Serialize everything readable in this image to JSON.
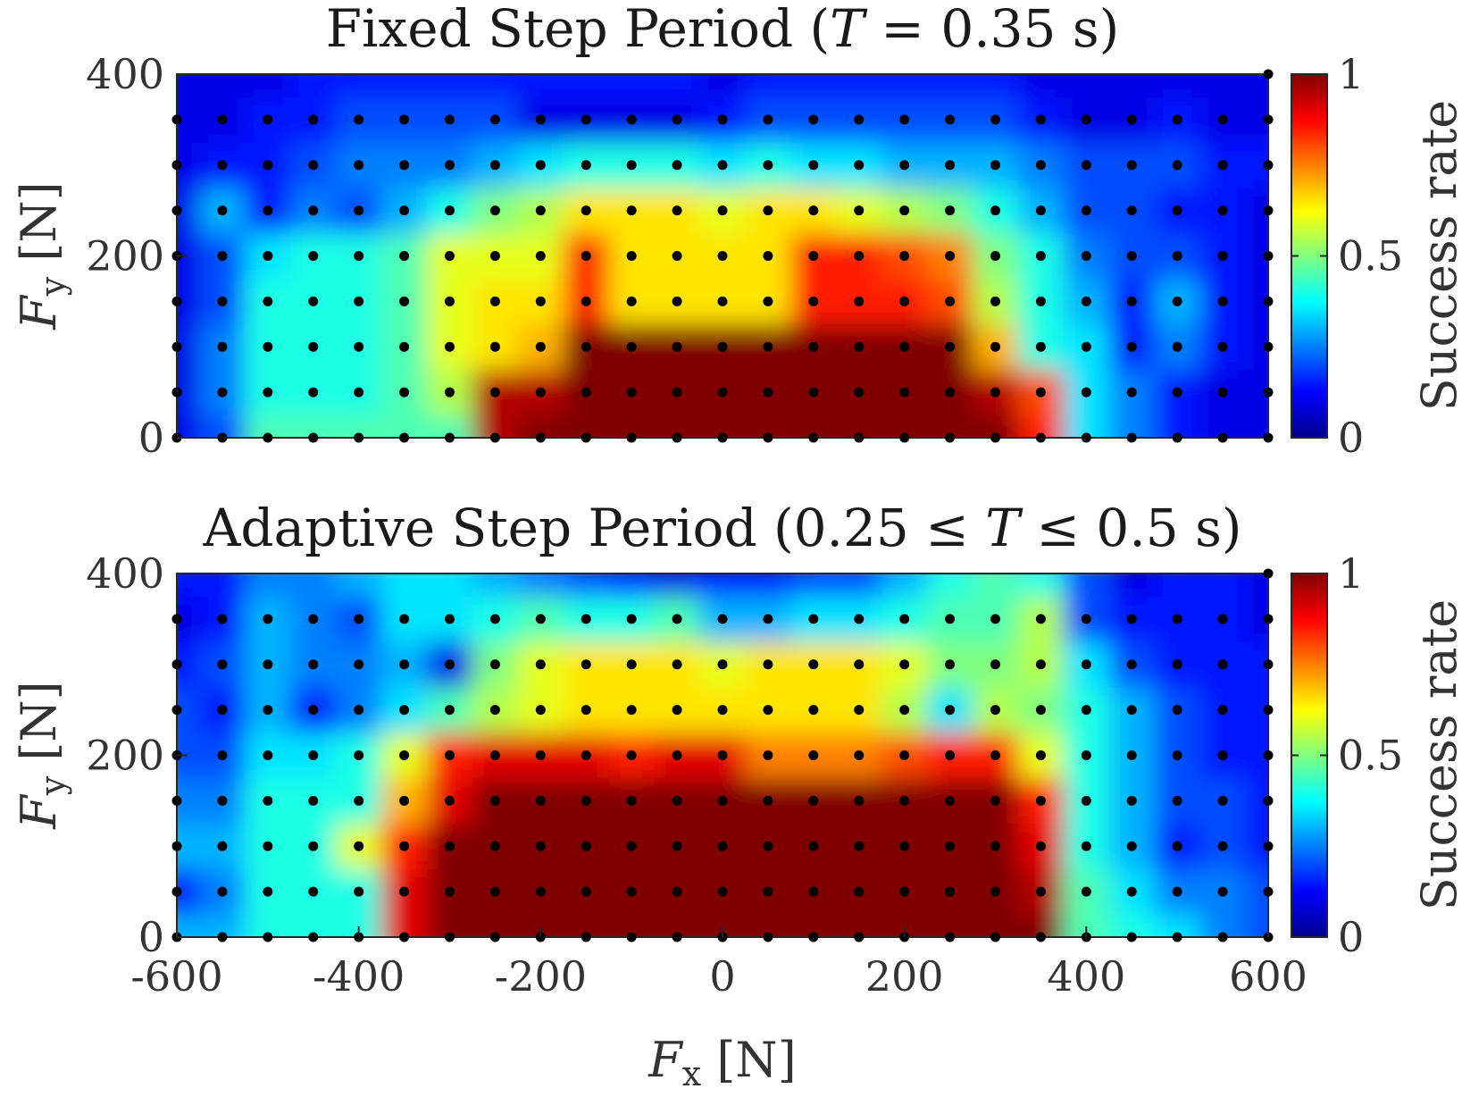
{
  "chart_data": [
    {
      "type": "heatmap",
      "title": "Fixed Step Period (T = 0.35 s)",
      "title_parts": {
        "before": "Fixed Step Period (",
        "T": "T",
        "rest": " = 0.35 s)"
      },
      "xlabel": "F_x [N]",
      "ylabel": "F_y [N]",
      "ylabel_parts": {
        "F": "F",
        "sub": "y",
        "unit": " [N]"
      },
      "colorbar_label": "Success rate",
      "xlim": [
        -600,
        600
      ],
      "ylim": [
        0,
        400
      ],
      "clim": [
        0,
        1
      ],
      "x_ticks": [
        "-600",
        "-400",
        "-200",
        "0",
        "200",
        "400",
        "600"
      ],
      "y_ticks": [
        "0",
        "200",
        "400"
      ],
      "colorbar_ticks": [
        "0",
        "0.5",
        "1"
      ],
      "x_sample": [
        -600,
        -550,
        -500,
        -450,
        -400,
        -350,
        -300,
        -250,
        -200,
        -150,
        -100,
        -50,
        0,
        50,
        100,
        150,
        200,
        250,
        300,
        350,
        400,
        450,
        500,
        550,
        600
      ],
      "y_sample": [
        0,
        50,
        100,
        150,
        200,
        250,
        300,
        350,
        400
      ],
      "z": [
        [
          0.1,
          0.2,
          0.45,
          0.45,
          0.45,
          0.45,
          0.45,
          0.95,
          1.0,
          1.0,
          1.0,
          1.0,
          1.0,
          1.0,
          1.0,
          1.0,
          1.0,
          1.0,
          1.0,
          0.85,
          0.35,
          0.25,
          0.15,
          0.1,
          0.1
        ],
        [
          0.1,
          0.25,
          0.4,
          0.4,
          0.4,
          0.45,
          0.55,
          0.95,
          0.95,
          1.0,
          1.0,
          1.0,
          1.0,
          1.0,
          1.0,
          1.0,
          1.0,
          1.0,
          0.95,
          0.8,
          0.35,
          0.25,
          0.15,
          0.1,
          0.1
        ],
        [
          0.1,
          0.25,
          0.4,
          0.4,
          0.4,
          0.45,
          0.6,
          0.65,
          0.7,
          1.0,
          1.0,
          1.0,
          1.0,
          1.0,
          1.0,
          1.0,
          1.0,
          1.0,
          0.7,
          0.4,
          0.35,
          0.15,
          0.25,
          0.15,
          0.1
        ],
        [
          0.1,
          0.2,
          0.4,
          0.4,
          0.4,
          0.45,
          0.6,
          0.65,
          0.65,
          0.85,
          0.65,
          0.65,
          0.65,
          0.65,
          0.85,
          0.85,
          0.85,
          0.8,
          0.55,
          0.4,
          0.3,
          0.15,
          0.3,
          0.15,
          0.1
        ],
        [
          0.1,
          0.2,
          0.35,
          0.4,
          0.4,
          0.45,
          0.6,
          0.6,
          0.6,
          0.85,
          0.65,
          0.65,
          0.65,
          0.65,
          0.85,
          0.85,
          0.8,
          0.75,
          0.5,
          0.4,
          0.25,
          0.2,
          0.2,
          0.15,
          0.1
        ],
        [
          0.1,
          0.3,
          0.15,
          0.25,
          0.2,
          0.3,
          0.4,
          0.5,
          0.55,
          0.65,
          0.65,
          0.65,
          0.6,
          0.65,
          0.65,
          0.6,
          0.55,
          0.5,
          0.4,
          0.3,
          0.2,
          0.2,
          0.15,
          0.15,
          0.1
        ],
        [
          0.1,
          0.15,
          0.15,
          0.2,
          0.25,
          0.25,
          0.25,
          0.3,
          0.35,
          0.4,
          0.4,
          0.4,
          0.35,
          0.4,
          0.35,
          0.35,
          0.3,
          0.3,
          0.3,
          0.25,
          0.2,
          0.2,
          0.2,
          0.15,
          0.15
        ],
        [
          0.1,
          0.1,
          0.15,
          0.15,
          0.2,
          0.2,
          0.2,
          0.2,
          0.1,
          0.1,
          0.1,
          0.1,
          0.15,
          0.2,
          0.2,
          0.2,
          0.2,
          0.2,
          0.2,
          0.15,
          0.1,
          0.1,
          0.15,
          0.1,
          0.1
        ],
        [
          0.1,
          0.1,
          0.1,
          0.15,
          0.15,
          0.15,
          0.15,
          0.15,
          0.15,
          0.15,
          0.15,
          0.15,
          0.1,
          0.15,
          0.15,
          0.15,
          0.15,
          0.15,
          0.15,
          0.1,
          0.1,
          0.1,
          0.1,
          0.1,
          0.1
        ]
      ],
      "markers": {
        "x": [
          -600,
          -550,
          -500,
          -450,
          -400,
          -350,
          -300,
          -250,
          -200,
          -150,
          -100,
          -50,
          0,
          50,
          100,
          150,
          200,
          250,
          300,
          350,
          400,
          450,
          500,
          550,
          600
        ],
        "y": [
          0,
          50,
          100,
          150,
          200,
          250,
          300,
          350
        ],
        "extra_points": [
          [
            600,
            400
          ]
        ]
      }
    },
    {
      "type": "heatmap",
      "title": "Adaptive Step Period (0.25 ≤ T ≤ 0.5 s)",
      "title_parts": {
        "before": "Adaptive Step Period (0.25 ≤ ",
        "T": "T",
        "rest": " ≤ 0.5 s)"
      },
      "xlabel": "F_x [N]",
      "ylabel": "F_y [N]",
      "xlabel_parts": {
        "F": "F",
        "sub": "x",
        "unit": " [N]"
      },
      "ylabel_parts": {
        "F": "F",
        "sub": "y",
        "unit": " [N]"
      },
      "colorbar_label": "Success rate",
      "xlim": [
        -600,
        600
      ],
      "ylim": [
        0,
        400
      ],
      "clim": [
        0,
        1
      ],
      "x_ticks": [
        "-600",
        "-400",
        "-200",
        "0",
        "200",
        "400",
        "600"
      ],
      "y_ticks": [
        "0",
        "200",
        "400"
      ],
      "colorbar_ticks": [
        "0",
        "0.5",
        "1"
      ],
      "x_sample": [
        -600,
        -550,
        -500,
        -450,
        -400,
        -350,
        -300,
        -250,
        -200,
        -150,
        -100,
        -50,
        0,
        50,
        100,
        150,
        200,
        250,
        300,
        350,
        400,
        450,
        500,
        550,
        600
      ],
      "y_sample": [
        0,
        50,
        100,
        150,
        200,
        250,
        300,
        350,
        400
      ],
      "z": [
        [
          0.3,
          0.3,
          0.4,
          0.4,
          0.4,
          0.9,
          1.0,
          1.0,
          1.0,
          1.0,
          1.0,
          1.0,
          1.0,
          1.0,
          1.0,
          1.0,
          1.0,
          1.0,
          1.0,
          1.0,
          0.45,
          0.4,
          0.35,
          0.25,
          0.2
        ],
        [
          0.15,
          0.25,
          0.4,
          0.4,
          0.4,
          0.9,
          1.0,
          1.0,
          1.0,
          1.0,
          1.0,
          1.0,
          1.0,
          1.0,
          1.0,
          1.0,
          1.0,
          1.0,
          1.0,
          0.95,
          0.45,
          0.35,
          0.25,
          0.25,
          0.2
        ],
        [
          0.3,
          0.3,
          0.4,
          0.4,
          0.6,
          0.85,
          1.0,
          1.0,
          1.0,
          1.0,
          1.0,
          1.0,
          1.0,
          1.0,
          1.0,
          1.0,
          1.0,
          1.0,
          1.0,
          0.9,
          0.4,
          0.3,
          0.15,
          0.2,
          0.15
        ],
        [
          0.25,
          0.25,
          0.4,
          0.4,
          0.4,
          0.7,
          0.9,
          1.0,
          1.0,
          1.0,
          1.0,
          1.0,
          1.0,
          1.0,
          1.0,
          1.0,
          1.0,
          1.0,
          1.0,
          0.85,
          0.4,
          0.3,
          0.2,
          0.2,
          0.15
        ],
        [
          0.2,
          0.2,
          0.35,
          0.35,
          0.4,
          0.6,
          0.85,
          0.9,
          0.9,
          0.9,
          0.85,
          0.9,
          0.9,
          0.75,
          0.75,
          0.75,
          0.8,
          0.85,
          0.85,
          0.6,
          0.4,
          0.3,
          0.2,
          0.15,
          0.15
        ],
        [
          0.2,
          0.15,
          0.3,
          0.15,
          0.25,
          0.35,
          0.45,
          0.55,
          0.6,
          0.65,
          0.65,
          0.65,
          0.65,
          0.65,
          0.65,
          0.65,
          0.55,
          0.35,
          0.55,
          0.5,
          0.4,
          0.3,
          0.2,
          0.15,
          0.15
        ],
        [
          0.15,
          0.2,
          0.3,
          0.25,
          0.25,
          0.3,
          0.1,
          0.5,
          0.6,
          0.65,
          0.65,
          0.65,
          0.6,
          0.65,
          0.65,
          0.65,
          0.6,
          0.5,
          0.5,
          0.55,
          0.35,
          0.2,
          0.15,
          0.15,
          0.15
        ],
        [
          0.1,
          0.15,
          0.3,
          0.25,
          0.2,
          0.35,
          0.35,
          0.4,
          0.45,
          0.4,
          0.4,
          0.45,
          0.3,
          0.3,
          0.35,
          0.35,
          0.4,
          0.45,
          0.45,
          0.55,
          0.2,
          0.15,
          0.15,
          0.15,
          0.1
        ],
        [
          0.15,
          0.15,
          0.25,
          0.25,
          0.3,
          0.35,
          0.35,
          0.3,
          0.25,
          0.2,
          0.15,
          0.1,
          0.15,
          0.15,
          0.2,
          0.2,
          0.3,
          0.4,
          0.45,
          0.4,
          0.2,
          0.1,
          0.15,
          0.15,
          0.1
        ]
      ],
      "markers": {
        "x": [
          -600,
          -550,
          -500,
          -450,
          -400,
          -350,
          -300,
          -250,
          -200,
          -150,
          -100,
          -50,
          0,
          50,
          100,
          150,
          200,
          250,
          300,
          350,
          400,
          450,
          500,
          550,
          600
        ],
        "y": [
          0,
          50,
          100,
          150,
          200,
          250,
          300,
          350
        ],
        "extra_points": [
          [
            600,
            400
          ]
        ]
      }
    }
  ]
}
